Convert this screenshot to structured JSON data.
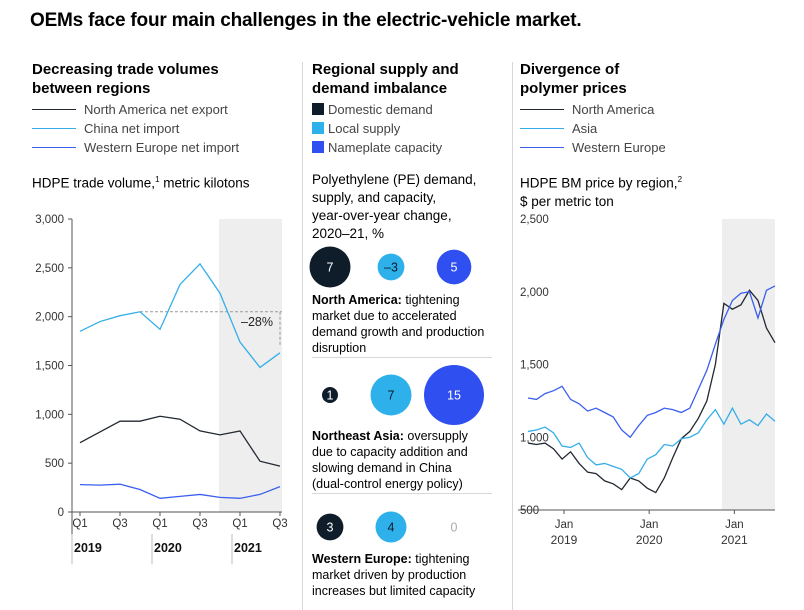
{
  "title": "OEMs face four main challenges in the electric-vehicle market.",
  "colors": {
    "north_america": "#222831",
    "china": "#35aee8",
    "western_europe": "#3a5ef0",
    "domestic": "#0f1d2b",
    "local": "#2eb1ea",
    "nameplate": "#2f4ff0",
    "shade": "#eeeeee",
    "zero_text": "#aaaaaa"
  },
  "panels": {
    "trade": {
      "heading": [
        "Decreasing trade volumes",
        "between regions"
      ],
      "legend": [
        "North America net export",
        "China net import",
        "Western Europe net import"
      ],
      "subtitle_main": "HDPE trade volume,",
      "subtitle_note": "1",
      "subtitle_unit": " metric kilotons",
      "annotation": "–28%"
    },
    "supply": {
      "heading": [
        "Regional supply and",
        "demand imbalance"
      ],
      "legend": [
        "Domestic demand",
        "Local supply",
        "Nameplate capacity"
      ],
      "subtitle": [
        "Polyethylene (PE) demand,",
        "supply, and capacity,",
        "year-over-year change,",
        "2020–21, %"
      ],
      "regions": [
        {
          "name": "North America:",
          "text": [
            " tightening",
            "market due to accelerated",
            "demand growth and production",
            "disruption"
          ]
        },
        {
          "name": "Northeast Asia:",
          "text": [
            " oversupply",
            "due to capacity addition and",
            "slowing demand in China",
            "(dual-control energy policy)"
          ]
        },
        {
          "name": "Western Europe:",
          "text": [
            " tightening",
            "market driven by production",
            "increases but limited capacity"
          ]
        }
      ]
    },
    "polymer": {
      "heading": [
        "Divergence of",
        "polymer prices"
      ],
      "legend": [
        "North America",
        "Asia",
        "Western Europe"
      ],
      "subtitle_main": "HDPE BM price by region,",
      "subtitle_note": "2",
      "subtitle_unit": "$ per metric ton"
    }
  },
  "chart_data": [
    {
      "type": "line",
      "title": "HDPE trade volume, metric kilotons",
      "x": [
        "2019 Q1",
        "2019 Q2",
        "2019 Q3",
        "2019 Q4",
        "2020 Q1",
        "2020 Q2",
        "2020 Q3",
        "2020 Q4",
        "2021 Q1",
        "2021 Q2",
        "2021 Q3"
      ],
      "tick_labels": [
        "Q1",
        "Q3",
        "Q1",
        "Q3",
        "Q1",
        "Q3"
      ],
      "year_labels": [
        "2019",
        "2020",
        "2021"
      ],
      "ylim": [
        0,
        3000
      ],
      "yticks": [
        "3,000",
        "2,500",
        "2,000",
        "1,500",
        "1,000",
        "500",
        "0"
      ],
      "series": [
        {
          "name": "North America net export",
          "values": [
            710,
            820,
            930,
            930,
            980,
            950,
            830,
            790,
            830,
            520,
            470
          ]
        },
        {
          "name": "China net import",
          "values": [
            1850,
            1950,
            2010,
            2050,
            1870,
            2330,
            2540,
            2240,
            1740,
            1480,
            1630
          ]
        },
        {
          "name": "Western Europe net import",
          "values": [
            280,
            275,
            285,
            230,
            140,
            160,
            180,
            150,
            140,
            180,
            260
          ]
        }
      ],
      "shaded_range": [
        "2020 Q4",
        "2021 Q3"
      ],
      "reference_value": 2050
    },
    {
      "type": "bubble",
      "title": "Polyethylene (PE) demand, supply, and capacity, year-over-year change, 2020–21, %",
      "categories": [
        "Domestic demand",
        "Local supply",
        "Nameplate capacity"
      ],
      "rows": [
        {
          "region": "North America",
          "values": [
            7,
            -3,
            5
          ],
          "labels": [
            "7",
            "–3",
            "5"
          ]
        },
        {
          "region": "Northeast Asia",
          "values": [
            1,
            7,
            15
          ],
          "labels": [
            "1",
            "7",
            "15"
          ]
        },
        {
          "region": "Western Europe",
          "values": [
            3,
            4,
            0
          ],
          "labels": [
            "3",
            "4",
            "0"
          ]
        }
      ]
    },
    {
      "type": "line",
      "title": "HDPE BM price by region, $ per metric ton",
      "x_ticks": [
        {
          "label": "Jan",
          "year": "2019"
        },
        {
          "label": "Jan",
          "year": "2020"
        },
        {
          "label": "Jan",
          "year": "2021"
        }
      ],
      "ylim": [
        500,
        2500
      ],
      "yticks": [
        "2,500",
        "2,000",
        "1,500",
        "1,000",
        "500"
      ],
      "series": [
        {
          "name": "North America",
          "values": [
            960,
            950,
            960,
            920,
            850,
            900,
            820,
            760,
            750,
            700,
            680,
            640,
            720,
            700,
            650,
            620,
            720,
            860,
            990,
            1040,
            1130,
            1250,
            1500,
            1920,
            1880,
            1910,
            2010,
            1940,
            1750,
            1650
          ]
        },
        {
          "name": "Asia",
          "values": [
            1040,
            1050,
            1070,
            1030,
            940,
            930,
            960,
            860,
            810,
            820,
            800,
            780,
            720,
            750,
            850,
            880,
            950,
            940,
            990,
            1000,
            1030,
            1120,
            1190,
            1090,
            1200,
            1090,
            1120,
            1080,
            1160,
            1110
          ]
        },
        {
          "name": "Western Europe",
          "values": [
            1270,
            1260,
            1300,
            1320,
            1350,
            1260,
            1230,
            1180,
            1200,
            1170,
            1140,
            1050,
            1000,
            1080,
            1150,
            1170,
            1200,
            1190,
            1170,
            1200,
            1330,
            1460,
            1640,
            1810,
            1940,
            1990,
            2000,
            1820,
            2010,
            2040
          ]
        }
      ],
      "shaded_from_index": 23
    }
  ]
}
